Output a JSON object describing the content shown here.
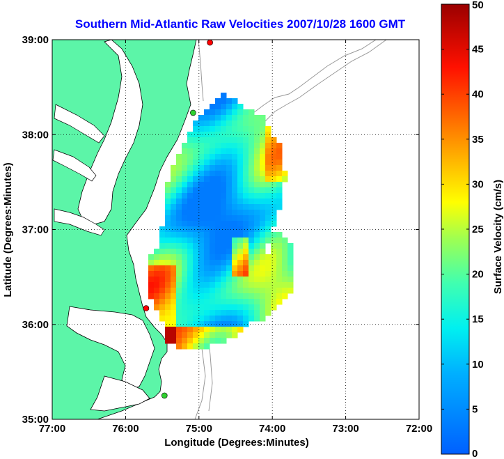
{
  "chart_data": {
    "type": "heatmap",
    "title": "Southern Mid-Atlantic Raw Velocities 2007/10/28 1600 GMT",
    "xlabel": "Longitude (Degrees:Minutes)",
    "ylabel": "Latitude (Degrees:Minutes)",
    "x_ticks": [
      "77:00",
      "76:00",
      "75:00",
      "74:00",
      "73:00",
      "72:00"
    ],
    "y_ticks": [
      "39:00",
      "38:00",
      "37:00",
      "36:00",
      "35:00"
    ],
    "xlim": [
      -77,
      -72
    ],
    "ylim": [
      35,
      39
    ],
    "grid": true,
    "colorbar": {
      "label": "Surface Velocity (cm/s)",
      "range": [
        0,
        50
      ],
      "ticks": [
        "50",
        "45",
        "40",
        "35",
        "30",
        "25",
        "20",
        "15",
        "10",
        "5",
        "0"
      ],
      "colormap": "jet"
    },
    "colors": {
      "land": "#5cf5a8",
      "title": "#0000ff",
      "coast": "#000000",
      "bathymetry": "#999999"
    },
    "stations": [
      {
        "lon": -74.85,
        "lat": 38.97,
        "color": "#ff0000"
      },
      {
        "lon": -75.08,
        "lat": 38.23,
        "color": "#30d030"
      },
      {
        "lon": -75.72,
        "lat": 36.17,
        "color": "#ff0000"
      },
      {
        "lon": -75.47,
        "lat": 35.25,
        "color": "#30d030"
      }
    ]
  }
}
